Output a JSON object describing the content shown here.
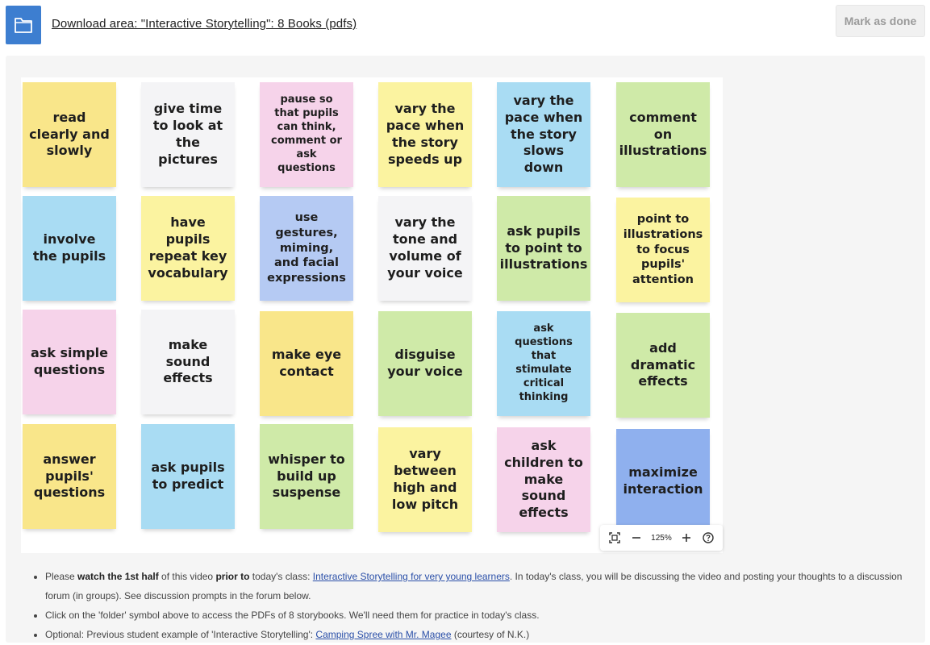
{
  "header": {
    "download_label": "Download area: \"Interactive Storytelling\": 8 Books (pdfs)",
    "mark_done_label": "Mark as done",
    "folder_icon": "folder-icon",
    "accent_color": "#3d7ed0"
  },
  "board": {
    "notes": [
      {
        "text": "read clearly and slowly",
        "color": "#f9e68a"
      },
      {
        "text": "give time to look at the pictures",
        "color": "#f4f4f6"
      },
      {
        "text": "pause so that pupils can think, comment or ask questions",
        "color": "#f6d3ea"
      },
      {
        "text": "vary the pace when the story speeds up",
        "color": "#fbf3a0"
      },
      {
        "text": "vary the pace when the story slows down",
        "color": "#a9dcf3"
      },
      {
        "text": "comment on illustrations",
        "color": "#cfeaa8"
      },
      {
        "text": "involve the pupils",
        "color": "#a9dcf3"
      },
      {
        "text": "have pupils repeat key vocabulary",
        "color": "#fbf3a0"
      },
      {
        "text": "use gestures, miming, and facial expressions",
        "color": "#b5caf3"
      },
      {
        "text": "vary the tone and volume of your voice",
        "color": "#f4f4f6"
      },
      {
        "text": "ask pupils to point to illustrations",
        "color": "#cfeaa8"
      },
      {
        "text": "point to illustrations to focus pupils' attention",
        "color": "#fbf3a0"
      },
      {
        "text": "ask simple questions",
        "color": "#f6d3ea"
      },
      {
        "text": "make sound effects",
        "color": "#f4f4f6"
      },
      {
        "text": "make eye contact",
        "color": "#f9e68a"
      },
      {
        "text": "disguise your voice",
        "color": "#cfeaa8"
      },
      {
        "text": "ask questions that stimulate critical thinking",
        "color": "#a9dcf3"
      },
      {
        "text": "add dramatic effects",
        "color": "#cfeaa8"
      },
      {
        "text": "answer pupils' questions",
        "color": "#f9e68a"
      },
      {
        "text": "ask pupils to predict",
        "color": "#a9dcf3"
      },
      {
        "text": "whisper to build up suspense",
        "color": "#cfeaa8"
      },
      {
        "text": "vary between high and low pitch",
        "color": "#fbf3a0"
      },
      {
        "text": "ask children to make sound effects",
        "color": "#f6d3ea"
      },
      {
        "text": "maximize interaction",
        "color": "#8fb0ee"
      }
    ],
    "zoom": {
      "zoom_level": "125%",
      "fit_icon": "fit-screen-icon",
      "zoom_out_icon": "minus-icon",
      "zoom_in_icon": "plus-icon",
      "help_icon": "help-icon"
    }
  },
  "instructions": {
    "b1_please": "Please ",
    "b1_watch": "watch the 1st half",
    "b1_of": " of this video ",
    "b1_prior": "prior to",
    "b1_class": " today's class: ",
    "b1_link": "Interactive Storytelling for very young learners",
    "b1_rest": ". In today's class, you will be discussing the video and posting your thoughts to a discussion forum (in groups). See discussion prompts in the forum below.",
    "b2": "Click on the 'folder' symbol above to access the PDFs of 8 storybooks. We'll need them for practice in today's class.",
    "b3_pre": "Optional: Previous student example of 'Interactive Storytelling': ",
    "b3_link": "Camping Spree with Mr. Magee",
    "b3_post": " (courtesy of N.K.)"
  }
}
